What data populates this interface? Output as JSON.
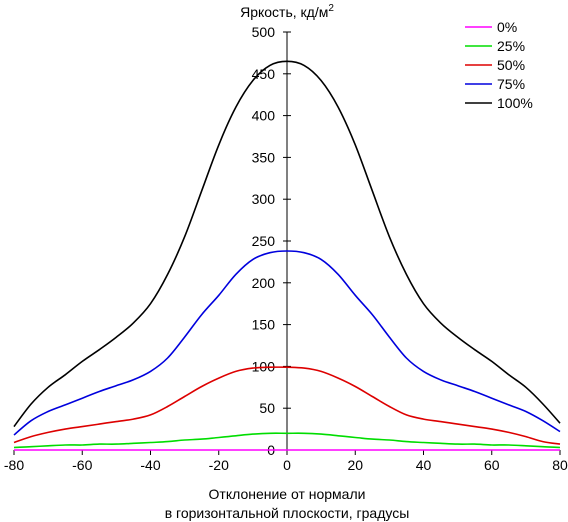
{
  "chart_data": {
    "type": "line",
    "title": "Яркость, кд/м",
    "title_sup": "2",
    "xlabel_line1": "Отклонение от нормали",
    "xlabel_line2": "в горизонтальной плоскости, градусы",
    "xlim": [
      -80,
      80
    ],
    "ylim": [
      0,
      500
    ],
    "xticks": [
      -80,
      -60,
      -40,
      -20,
      0,
      20,
      40,
      60,
      80
    ],
    "yticks": [
      0,
      50,
      100,
      150,
      200,
      250,
      300,
      350,
      400,
      450,
      500
    ],
    "grid": false,
    "legend_position": "top-right",
    "x": [
      -80,
      -75,
      -70,
      -65,
      -60,
      -55,
      -50,
      -45,
      -40,
      -35,
      -30,
      -25,
      -20,
      -15,
      -10,
      -5,
      0,
      5,
      10,
      15,
      20,
      25,
      30,
      35,
      40,
      45,
      50,
      55,
      60,
      65,
      70,
      75,
      80
    ],
    "series": [
      {
        "name": "0%",
        "color": "#ff00ff",
        "values": [
          0,
          0,
          0,
          0,
          0,
          0,
          0,
          0,
          0,
          0,
          0,
          0,
          0,
          0,
          0,
          0,
          0,
          0,
          0,
          0,
          0,
          0,
          0,
          0,
          0,
          0,
          0,
          0,
          0,
          0,
          0,
          0,
          0
        ]
      },
      {
        "name": "25%",
        "color": "#00dd00",
        "values": [
          3,
          4,
          5,
          6,
          6,
          7,
          7,
          8,
          9,
          10,
          12,
          13,
          15,
          17,
          19,
          20,
          20,
          20,
          19,
          17,
          15,
          13,
          12,
          10,
          9,
          8,
          7,
          7,
          6,
          6,
          5,
          4,
          3
        ]
      },
      {
        "name": "50%",
        "color": "#dd0000",
        "values": [
          9,
          16,
          21,
          25,
          28,
          31,
          34,
          37,
          42,
          52,
          64,
          76,
          86,
          94,
          98,
          99,
          99,
          98,
          94,
          86,
          76,
          64,
          52,
          42,
          37,
          34,
          31,
          28,
          25,
          21,
          16,
          10,
          7
        ]
      },
      {
        "name": "75%",
        "color": "#0000dd",
        "values": [
          18,
          35,
          46,
          54,
          62,
          70,
          77,
          84,
          94,
          110,
          135,
          162,
          185,
          210,
          228,
          236,
          238,
          236,
          228,
          210,
          185,
          162,
          135,
          110,
          94,
          84,
          77,
          70,
          62,
          54,
          46,
          35,
          22
        ]
      },
      {
        "name": "100%",
        "color": "#000000",
        "values": [
          28,
          55,
          75,
          90,
          106,
          120,
          135,
          152,
          175,
          210,
          255,
          310,
          365,
          410,
          442,
          460,
          465,
          460,
          442,
          410,
          365,
          310,
          255,
          210,
          175,
          152,
          135,
          120,
          106,
          90,
          75,
          55,
          32
        ]
      }
    ]
  }
}
